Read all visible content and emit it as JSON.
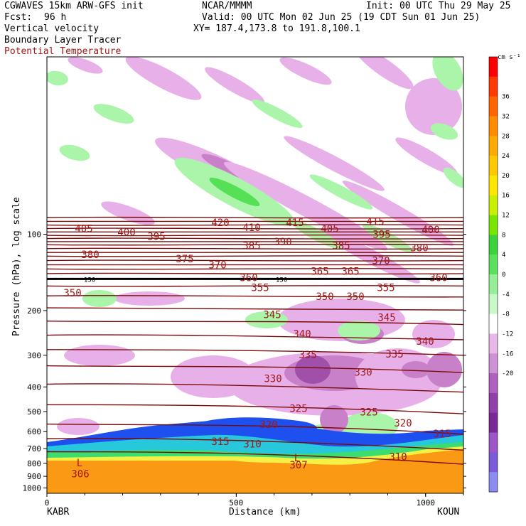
{
  "header": {
    "model_line": "CGWAVES 15km ARW-GFS init",
    "org": "NCAR/MMMM",
    "init": "Init: 00 UTC Thu 29 May 25",
    "fcst_label": "Fcst:",
    "fcst_value": "96 h",
    "valid": "Valid: 00 UTC Mon 02 Jun 25 (19 CDT Sun 01 Jun 25)",
    "field1": "Vertical velocity",
    "xy": "XY= 187.4,173.8 to 191.8,100.1",
    "field2": "Boundary Layer Tracer",
    "field3": "Potential Temperature"
  },
  "colors": {
    "theta": "#7a0a0a",
    "theta_label": "#a01818",
    "tropopause": "#000000",
    "up_light": "#aaf5aa",
    "up_mid": "#55e055",
    "down_light": "#e8b0e8",
    "down_mid": "#c880c8",
    "down_dark": "#a050a8",
    "pbl_orange": "#fa9a14",
    "pbl_yellow": "#f5f046",
    "pbl_green": "#3cdc6e",
    "pbl_cyan": "#28c8dc",
    "pbl_blue": "#1e50f0"
  },
  "chart_data": {
    "type": "cross-section",
    "xlabel": "Distance (km)",
    "ylabel": "Pressure (hPa), log scale",
    "x_ticks": [
      "0",
      "500",
      "1000"
    ],
    "x_tick_values": [
      0,
      500,
      1000
    ],
    "xlim": [
      0,
      1100
    ],
    "y_ticks": [
      "100",
      "200",
      "300",
      "400",
      "500",
      "600",
      "700",
      "800",
      "900",
      "1000"
    ],
    "y_tick_values": [
      100,
      200,
      300,
      400,
      500,
      600,
      700,
      800,
      900,
      1000
    ],
    "ylim_hpa": [
      1000,
      20
    ],
    "y_scale": "log",
    "endpoints": {
      "left": "KABR",
      "right": "KOUN"
    },
    "colorbar": {
      "unit": "cm s⁻¹",
      "ticks": [
        "36",
        "32",
        "28",
        "24",
        "20",
        "16",
        "12",
        "8",
        "4",
        "0",
        "-4",
        "-8",
        "-12",
        "-16",
        "-20"
      ],
      "colors": [
        "#ff0000",
        "#ff3a00",
        "#ff6400",
        "#ff8c00",
        "#ffaa00",
        "#ffc800",
        "#ffe600",
        "#c8f000",
        "#78e600",
        "#3cd23c",
        "#5ae05a",
        "#96ee96",
        "#c8f8c8",
        "#ffffff",
        "#e8b8e8",
        "#d090d8",
        "#b060c0",
        "#9040a8",
        "#7a2896",
        "#9d55c8",
        "#7a5ad8",
        "#8c8cf0"
      ]
    },
    "theta_labels": [
      {
        "text": "420",
        "x": 310,
        "p": 90
      },
      {
        "text": "415",
        "x": 415,
        "p": 90
      },
      {
        "text": "415",
        "x": 528,
        "p": 89
      },
      {
        "text": "405",
        "x": 118,
        "p": 95
      },
      {
        "text": "410",
        "x": 354,
        "p": 94
      },
      {
        "text": "405",
        "x": 464,
        "p": 95
      },
      {
        "text": "400",
        "x": 606,
        "p": 96
      },
      {
        "text": "400",
        "x": 178,
        "p": 98
      },
      {
        "text": "395",
        "x": 220,
        "p": 102
      },
      {
        "text": "395",
        "x": 537,
        "p": 100
      },
      {
        "text": "390",
        "x": 398,
        "p": 107
      },
      {
        "text": "385",
        "x": 354,
        "p": 111
      },
      {
        "text": "385",
        "x": 480,
        "p": 111
      },
      {
        "text": "380",
        "x": 127,
        "p": 120
      },
      {
        "text": "380",
        "x": 590,
        "p": 113
      },
      {
        "text": "375",
        "x": 260,
        "p": 125
      },
      {
        "text": "370",
        "x": 306,
        "p": 132
      },
      {
        "text": "370",
        "x": 536,
        "p": 127
      },
      {
        "text": "365",
        "x": 450,
        "p": 140
      },
      {
        "text": "365",
        "x": 493,
        "p": 140
      },
      {
        "text": "360",
        "x": 350,
        "p": 148
      },
      {
        "text": "360",
        "x": 617,
        "p": 148
      },
      {
        "text": "355",
        "x": 366,
        "p": 162
      },
      {
        "text": "355",
        "x": 543,
        "p": 162
      },
      {
        "text": "350",
        "x": 102,
        "p": 170
      },
      {
        "text": "350",
        "x": 457,
        "p": 176
      },
      {
        "text": "350",
        "x": 500,
        "p": 176
      },
      {
        "text": "345",
        "x": 383,
        "p": 207
      },
      {
        "text": "345",
        "x": 544,
        "p": 213
      },
      {
        "text": "340",
        "x": 425,
        "p": 247
      },
      {
        "text": "340",
        "x": 598,
        "p": 264
      },
      {
        "text": "335",
        "x": 433,
        "p": 298
      },
      {
        "text": "335",
        "x": 555,
        "p": 297
      },
      {
        "text": "330",
        "x": 384,
        "p": 370
      },
      {
        "text": "330",
        "x": 511,
        "p": 350
      },
      {
        "text": "325",
        "x": 420,
        "p": 485
      },
      {
        "text": "325",
        "x": 519,
        "p": 502
      },
      {
        "text": "320",
        "x": 378,
        "p": 562
      },
      {
        "text": "320",
        "x": 567,
        "p": 555
      },
      {
        "text": "315",
        "x": 622,
        "p": 610
      },
      {
        "text": "315",
        "x": 310,
        "p": 655
      },
      {
        "text": "310",
        "x": 355,
        "p": 670
      },
      {
        "text": "310",
        "x": 560,
        "p": 752
      },
      {
        "text": "307",
        "x": 420,
        "p": 810
      },
      {
        "text": "306",
        "x": 113,
        "p": 880
      }
    ],
    "tropopause_label": "150",
    "low_markers": [
      {
        "text": "L",
        "x": 112,
        "p": 795
      },
      {
        "text": "L",
        "x": 418,
        "p": 760
      }
    ]
  }
}
